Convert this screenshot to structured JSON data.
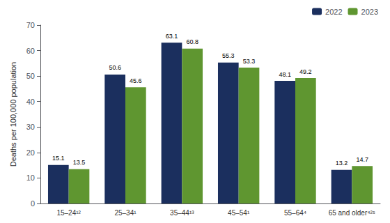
{
  "chart_data": {
    "type": "bar",
    "categories": [
      "15–24¹²",
      "25–34¹",
      "35–44¹³",
      "45–54¹",
      "55–64⁴",
      "65 and older⁴²⁵"
    ],
    "series": [
      {
        "name": "2022",
        "color": "#1b2f5e",
        "values": [
          15.1,
          50.6,
          63.1,
          55.3,
          48.1,
          13.2
        ]
      },
      {
        "name": "2023",
        "color": "#5f9630",
        "values": [
          13.5,
          45.6,
          60.8,
          53.3,
          49.2,
          14.7
        ]
      }
    ],
    "ylabel": "Deaths per 100,000 population",
    "ylim": [
      0,
      70
    ],
    "yticks": [
      0,
      10,
      20,
      30,
      40,
      50,
      60,
      70
    ],
    "grid": false,
    "legend": "upper right",
    "data_labels": true
  }
}
